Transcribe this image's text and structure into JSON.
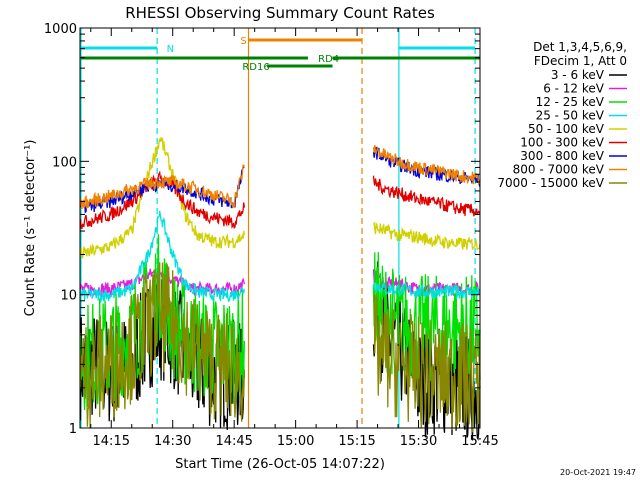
{
  "chart_data": {
    "type": "line",
    "title": "RHESSI Observing Summary Count Rates",
    "xlabel": "Start Time (26-Oct-05 14:07:22)",
    "ylabel": "Count Rate (s⁻¹ detector⁻¹)",
    "yscale": "log",
    "ylim": [
      1,
      1000
    ],
    "xlim_minutes": [
      7.37,
      105
    ],
    "x_ticks": [
      {
        "minutes": 15,
        "label": "14:15"
      },
      {
        "minutes": 30,
        "label": "14:30"
      },
      {
        "minutes": 45,
        "label": "14:45"
      },
      {
        "minutes": 60,
        "label": "15:00"
      },
      {
        "minutes": 75,
        "label": "15:15"
      },
      {
        "minutes": 90,
        "label": "15:30"
      },
      {
        "minutes": 105,
        "label": "15:45"
      }
    ],
    "y_ticks": [
      {
        "value": 1,
        "label": "1"
      },
      {
        "value": 10,
        "label": "10"
      },
      {
        "value": 100,
        "label": "100"
      },
      {
        "value": 1000,
        "label": "1000"
      }
    ],
    "legend_header": [
      "Det 1,3,4,5,6,9,",
      "FDecim 1, Att 0"
    ],
    "series": [
      {
        "name": "3 - 6 keV",
        "color": "#000000",
        "x": [
          7.5,
          10,
          15,
          20,
          24,
          27,
          30,
          35,
          40,
          45,
          47.5,
          79,
          82,
          85,
          90,
          95,
          100,
          105
        ],
        "y": [
          3,
          3,
          2.6,
          3,
          5,
          6,
          5,
          3,
          2.5,
          2.5,
          2.4,
          8,
          5,
          4,
          2.2,
          2.3,
          2,
          2
        ]
      },
      {
        "name": "6 - 12 keV",
        "color": "#e020e0",
        "x": [
          7.5,
          10,
          15,
          20,
          24,
          27,
          30,
          35,
          40,
          45,
          47.5,
          79,
          82,
          85,
          90,
          95,
          100,
          105
        ],
        "y": [
          11,
          11,
          11,
          12,
          14,
          15,
          13,
          11,
          11,
          11,
          12,
          14,
          12,
          12,
          11,
          11,
          11,
          11
        ]
      },
      {
        "name": "12 - 25 keV",
        "color": "#00e000",
        "x": [
          7.5,
          10,
          15,
          20,
          24,
          27,
          30,
          35,
          40,
          45,
          47.5,
          79,
          82,
          85,
          90,
          95,
          100,
          105
        ],
        "y": [
          3.5,
          3.6,
          4,
          5,
          8,
          12,
          6,
          4.5,
          4,
          4,
          4.5,
          9,
          7,
          6,
          5.5,
          5.5,
          5.5,
          5.5
        ]
      },
      {
        "name": "25 - 50 keV",
        "color": "#00e0e0",
        "x": [
          7.5,
          10,
          15,
          20,
          24,
          27,
          30,
          33,
          36,
          40,
          45,
          47.5,
          79,
          82,
          85,
          90,
          95,
          100,
          105
        ],
        "y": [
          10,
          10,
          10,
          11,
          20,
          40,
          20,
          12,
          10.5,
          10,
          10,
          11,
          12,
          11,
          11,
          10.5,
          10.5,
          10.5,
          10.5
        ]
      },
      {
        "name": "50 - 100 keV",
        "color": "#d0d000",
        "x": [
          7.5,
          10,
          15,
          20,
          24,
          27,
          30,
          33,
          36,
          40,
          45,
          47.5,
          79,
          82,
          85,
          90,
          95,
          100,
          105
        ],
        "y": [
          20,
          21,
          23,
          30,
          80,
          150,
          80,
          40,
          28,
          25,
          25,
          28,
          32,
          30,
          28,
          27,
          25,
          24,
          24
        ]
      },
      {
        "name": "100 - 300 keV",
        "color": "#e00000",
        "x": [
          7.5,
          10,
          15,
          20,
          24,
          27,
          30,
          33,
          36,
          40,
          45,
          47.5,
          79,
          82,
          85,
          90,
          95,
          100,
          105
        ],
        "y": [
          35,
          36,
          40,
          50,
          65,
          75,
          65,
          50,
          42,
          38,
          35,
          45,
          70,
          62,
          58,
          52,
          48,
          44,
          42
        ]
      },
      {
        "name": "300 - 800 keV",
        "color": "#0000e0",
        "x": [
          7.5,
          10,
          15,
          20,
          24,
          27,
          30,
          33,
          36,
          40,
          45,
          47.5,
          79,
          82,
          85,
          90,
          95,
          100,
          105
        ],
        "y": [
          45,
          46,
          50,
          58,
          65,
          68,
          66,
          63,
          58,
          52,
          48,
          90,
          120,
          105,
          95,
          85,
          80,
          76,
          72
        ]
      },
      {
        "name": "800 - 7000 keV",
        "color": "#f08000",
        "x": [
          7.5,
          10,
          15,
          20,
          24,
          27,
          30,
          33,
          36,
          40,
          45,
          47.5,
          79,
          82,
          85,
          90,
          95,
          100,
          105
        ],
        "y": [
          48,
          50,
          55,
          62,
          68,
          70,
          70,
          66,
          62,
          56,
          50,
          92,
          125,
          110,
          100,
          90,
          84,
          78,
          74
        ]
      },
      {
        "name": "7000 - 15000 keV",
        "color": "#888800",
        "x": [
          7.5,
          10,
          15,
          20,
          24,
          27,
          30,
          35,
          40,
          45,
          47.5,
          79,
          82,
          85,
          90,
          95,
          100,
          105
        ],
        "y": [
          2.5,
          2.6,
          3,
          4,
          6,
          7,
          6,
          4,
          3,
          2.8,
          2.7,
          4,
          3.5,
          3,
          2.6,
          2.5,
          2.4,
          2.3
        ]
      }
    ],
    "vertical_markers": [
      {
        "minutes": 7.6,
        "color": "#00e0e0",
        "style": "solid"
      },
      {
        "minutes": 26.2,
        "color": "#00e0e0",
        "style": "dashed"
      },
      {
        "minutes": 48.5,
        "color": "#f08000",
        "style": "solid"
      },
      {
        "minutes": 76.2,
        "color": "#f08000",
        "style": "dashed"
      },
      {
        "minutes": 85.2,
        "color": "#00e0e0",
        "style": "solid"
      },
      {
        "minutes": 103.8,
        "color": "#00e0e0",
        "style": "dashed"
      }
    ],
    "flag_bars": [
      {
        "label": "N",
        "color": "#00e0e0",
        "level": 1,
        "segments": [
          [
            7.6,
            26.2
          ],
          [
            85.2,
            103.8
          ]
        ],
        "label_at": 28.5
      },
      {
        "label": "S",
        "color": "#f08000",
        "level": 2,
        "segments": [
          [
            48.5,
            76.2
          ]
        ],
        "label_at": 46.5
      },
      {
        "label": "RD4",
        "color": "#008000",
        "level": 3,
        "segments": [
          [
            7.6,
            63
          ],
          [
            69,
            105
          ]
        ],
        "label_at": 65.5
      },
      {
        "label": "RD16",
        "color": "#008000",
        "level": 4,
        "segments": [
          [
            53,
            69
          ]
        ],
        "label_at": 47
      }
    ],
    "timestamp": "20-Oct-2021 19:47"
  }
}
